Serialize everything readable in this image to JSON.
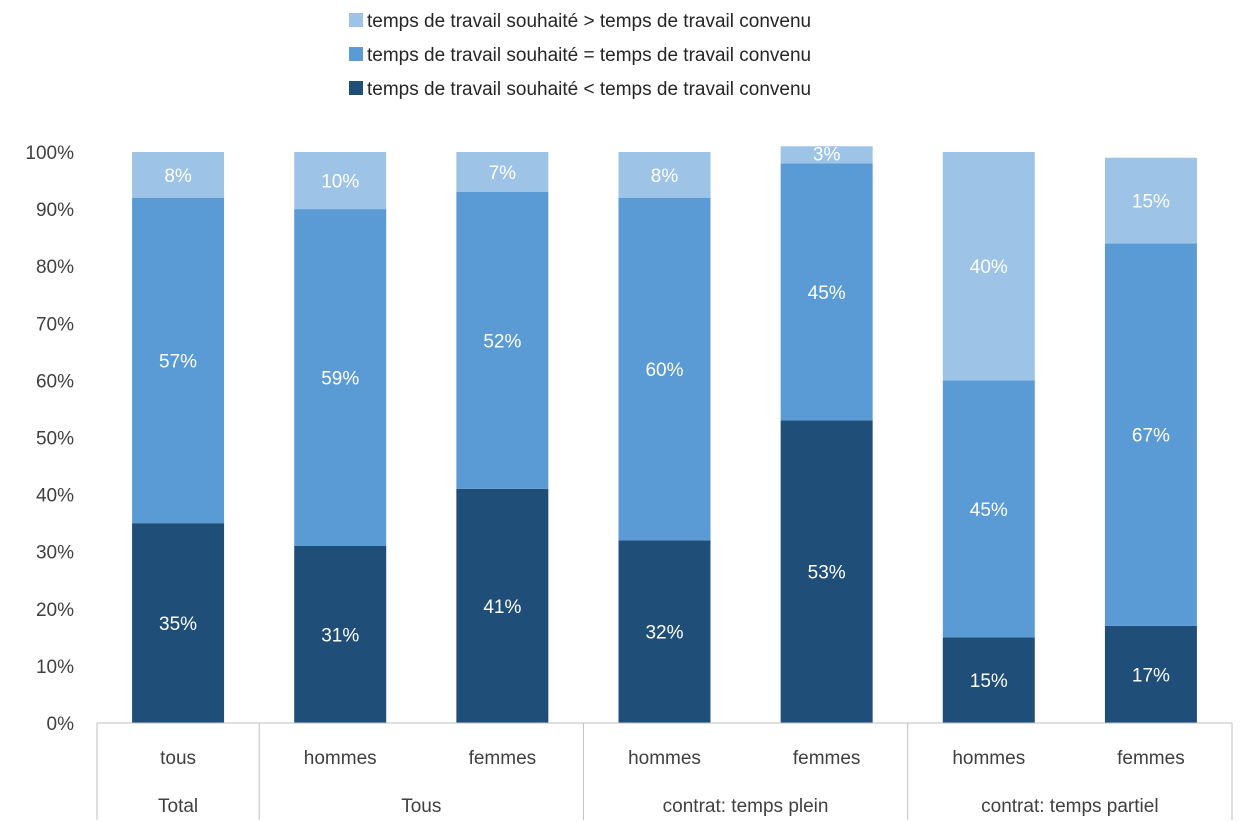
{
  "chart_data": {
    "type": "bar",
    "stacked": true,
    "title": "",
    "xlabel": "",
    "ylabel": "",
    "ylim": [
      0,
      100
    ],
    "yticks": [
      "0%",
      "10%",
      "20%",
      "30%",
      "40%",
      "50%",
      "60%",
      "70%",
      "80%",
      "90%",
      "100%"
    ],
    "categories": [
      "tous",
      "hommes",
      "femmes",
      "hommes",
      "femmes",
      "hommes",
      "femmes"
    ],
    "groups": [
      {
        "label": "Total",
        "count": 1
      },
      {
        "label": "Tous",
        "count": 2
      },
      {
        "label": "contrat: temps plein",
        "count": 2
      },
      {
        "label": "contrat: temps partiel",
        "count": 2
      }
    ],
    "legend_position": "top",
    "series": [
      {
        "name": "temps de travail souhaité < temps de travail convenu",
        "color": "#1f4e79",
        "values": [
          35,
          31,
          41,
          32,
          53,
          15,
          17
        ],
        "labels": [
          "35%",
          "31%",
          "41%",
          "32%",
          "53%",
          "15%",
          "17%"
        ]
      },
      {
        "name": "temps de travail souhaité = temps de travail convenu",
        "color": "#5b9bd5",
        "values": [
          57,
          59,
          52,
          60,
          45,
          45,
          67
        ],
        "labels": [
          "57%",
          "59%",
          "52%",
          "60%",
          "45%",
          "45%",
          "67%"
        ]
      },
      {
        "name": "temps de travail souhaité > temps de travail convenu",
        "color": "#9dc3e6",
        "values": [
          8,
          10,
          7,
          8,
          3,
          40,
          15
        ],
        "labels": [
          "8%",
          "10%",
          "7%",
          "8%",
          "3%",
          "40%",
          "15%"
        ]
      }
    ],
    "grid": false
  }
}
